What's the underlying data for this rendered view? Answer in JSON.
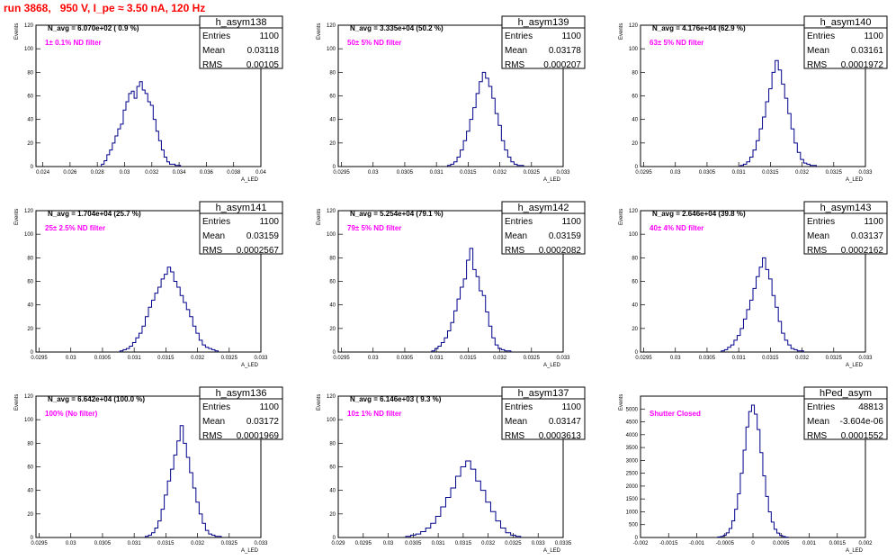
{
  "header": {
    "run_title": "run 3868,   950 V, I_pe ≈ 3.50 nA, 120 Hz"
  },
  "chart_data": [
    {
      "type": "bar",
      "name": "h_asym138",
      "navg": "N_avg = 6.070e+02 ( 0.9 %)",
      "filter": "1± 0.1% ND filter",
      "entries": "1100",
      "mean": "0.03118",
      "rms": "0.00105",
      "xlim": [
        0.0235,
        0.04
      ],
      "xticks": [
        "0.024",
        "0.026",
        "0.028",
        "0.03",
        "0.032",
        "0.034",
        "0.036",
        "0.038",
        "0.04"
      ],
      "xtick_values": [
        0.024,
        0.026,
        0.028,
        0.03,
        0.032,
        0.034,
        0.036,
        0.038,
        0.04
      ],
      "ylim": [
        0,
        120
      ],
      "yticks": [
        0,
        20,
        40,
        60,
        80,
        100,
        120
      ],
      "x": [
        0.0284,
        0.0286,
        0.0288,
        0.029,
        0.0292,
        0.0294,
        0.0296,
        0.0298,
        0.03,
        0.0302,
        0.0304,
        0.0306,
        0.0308,
        0.031,
        0.0312,
        0.0314,
        0.0316,
        0.0318,
        0.032,
        0.0322,
        0.0324,
        0.0326,
        0.0328,
        0.033,
        0.0332,
        0.0334,
        0.0336,
        0.0338,
        0.034
      ],
      "values": [
        2,
        5,
        10,
        14,
        20,
        26,
        32,
        36,
        48,
        55,
        62,
        64,
        58,
        68,
        72,
        65,
        62,
        55,
        52,
        40,
        30,
        22,
        14,
        8,
        4,
        2,
        2,
        1,
        1
      ],
      "ylabel": "Events",
      "xlabel": "A_LED"
    },
    {
      "type": "bar",
      "name": "h_asym139",
      "navg": "N_avg = 3.335e+04 (50.2 %)",
      "filter": "50± 5% ND filter",
      "entries": "1100",
      "mean": "0.03178",
      "rms": "0.000207",
      "xlim": [
        0.02945,
        0.033
      ],
      "xticks": [
        "0.0295",
        "0.03",
        "0.0305",
        "0.031",
        "0.0315",
        "0.032",
        "0.0325",
        "0.033"
      ],
      "xtick_values": [
        0.0295,
        0.03,
        0.0305,
        0.031,
        0.0315,
        0.032,
        0.0325,
        0.033
      ],
      "ylim": [
        0,
        120
      ],
      "yticks": [
        0,
        20,
        40,
        60,
        80,
        100,
        120
      ],
      "x": [
        0.0312,
        0.03125,
        0.0313,
        0.03135,
        0.0314,
        0.03145,
        0.0315,
        0.03155,
        0.0316,
        0.03165,
        0.0317,
        0.03175,
        0.0318,
        0.03185,
        0.0319,
        0.03195,
        0.032,
        0.03205,
        0.0321,
        0.03215,
        0.0322,
        0.03225,
        0.0323,
        0.03235
      ],
      "values": [
        1,
        2,
        4,
        8,
        14,
        22,
        30,
        40,
        50,
        62,
        72,
        80,
        75,
        68,
        58,
        45,
        35,
        22,
        14,
        8,
        4,
        2,
        1,
        1
      ],
      "ylabel": "Events",
      "xlabel": "A_LED"
    },
    {
      "type": "bar",
      "name": "h_asym140",
      "navg": "N_avg = 4.176e+04 (62.9 %)",
      "filter": "63± 5% ND filter",
      "entries": "1100",
      "mean": "0.03161",
      "rms": "0.0001972",
      "xlim": [
        0.02945,
        0.033
      ],
      "xticks": [
        "0.0295",
        "0.03",
        "0.0305",
        "0.031",
        "0.0315",
        "0.032",
        "0.0325",
        "0.033"
      ],
      "xtick_values": [
        0.0295,
        0.03,
        0.0305,
        0.031,
        0.0315,
        0.032,
        0.0325,
        0.033
      ],
      "ylim": [
        0,
        120
      ],
      "yticks": [
        0,
        20,
        40,
        60,
        80,
        100,
        120
      ],
      "x": [
        0.03105,
        0.0311,
        0.03115,
        0.0312,
        0.03125,
        0.0313,
        0.03135,
        0.0314,
        0.03145,
        0.0315,
        0.03155,
        0.0316,
        0.03165,
        0.0317,
        0.03175,
        0.0318,
        0.03185,
        0.0319,
        0.03195,
        0.032,
        0.03205,
        0.0321,
        0.03215,
        0.0322
      ],
      "values": [
        1,
        2,
        4,
        8,
        14,
        22,
        32,
        42,
        55,
        66,
        80,
        90,
        82,
        70,
        58,
        45,
        32,
        20,
        12,
        6,
        3,
        2,
        1,
        1
      ],
      "ylabel": "Events",
      "xlabel": "A_LED"
    },
    {
      "type": "bar",
      "name": "h_asym141",
      "navg": "N_avg = 1.704e+04 (25.7 %)",
      "filter": "25± 2.5% ND filter",
      "entries": "1100",
      "mean": "0.03159",
      "rms": "0.0002567",
      "xlim": [
        0.02945,
        0.033
      ],
      "xticks": [
        "0.0295",
        "0.03",
        "0.0305",
        "0.031",
        "0.0315",
        "0.032",
        "0.0325",
        "0.033"
      ],
      "xtick_values": [
        0.0295,
        0.03,
        0.0305,
        0.031,
        0.0315,
        0.032,
        0.0325,
        0.033
      ],
      "ylim": [
        0,
        120
      ],
      "yticks": [
        0,
        20,
        40,
        60,
        80,
        100,
        120
      ],
      "x": [
        0.0308,
        0.03085,
        0.0309,
        0.03095,
        0.031,
        0.03105,
        0.0311,
        0.03115,
        0.0312,
        0.03125,
        0.0313,
        0.03135,
        0.0314,
        0.03145,
        0.0315,
        0.03155,
        0.0316,
        0.03165,
        0.0317,
        0.03175,
        0.0318,
        0.03185,
        0.0319,
        0.03195,
        0.032,
        0.03205,
        0.0321,
        0.03215,
        0.0322,
        0.03225,
        0.0323
      ],
      "values": [
        1,
        2,
        3,
        5,
        8,
        12,
        16,
        22,
        30,
        38,
        44,
        50,
        55,
        62,
        66,
        72,
        68,
        60,
        55,
        48,
        42,
        36,
        30,
        22,
        16,
        10,
        6,
        4,
        3,
        2,
        1
      ],
      "ylabel": "Events",
      "xlabel": "A_LED"
    },
    {
      "type": "bar",
      "name": "h_asym142",
      "navg": "N_avg = 5.254e+04 (79.1 %)",
      "filter": "79± 5% ND filter",
      "entries": "1100",
      "mean": "0.03159",
      "rms": "0.0002082",
      "xlim": [
        0.02945,
        0.033
      ],
      "xticks": [
        "0.0295",
        "0.03",
        "0.0305",
        "0.031",
        "0.0315",
        "0.032",
        "0.0325",
        "0.033"
      ],
      "xtick_values": [
        0.0295,
        0.03,
        0.0305,
        0.031,
        0.0315,
        0.032,
        0.0325,
        0.033
      ],
      "ylim": [
        0,
        120
      ],
      "yticks": [
        0,
        20,
        40,
        60,
        80,
        100,
        120
      ],
      "x": [
        0.03095,
        0.031,
        0.03105,
        0.0311,
        0.03115,
        0.0312,
        0.03125,
        0.0313,
        0.03135,
        0.0314,
        0.03145,
        0.0315,
        0.03155,
        0.0316,
        0.03165,
        0.0317,
        0.03175,
        0.0318,
        0.03185,
        0.0319,
        0.03195,
        0.032,
        0.03205,
        0.0321,
        0.03215
      ],
      "values": [
        1,
        3,
        5,
        8,
        12,
        18,
        25,
        35,
        45,
        55,
        62,
        78,
        88,
        70,
        64,
        52,
        48,
        34,
        22,
        12,
        6,
        3,
        2,
        1,
        1
      ],
      "ylabel": "Events",
      "xlabel": "A_LED"
    },
    {
      "type": "bar",
      "name": "h_asym143",
      "navg": "N_avg = 2.646e+04 (39.8 %)",
      "filter": "40± 4% ND filter",
      "entries": "1100",
      "mean": "0.03137",
      "rms": "0.0002162",
      "xlim": [
        0.02945,
        0.033
      ],
      "xticks": [
        "0.0295",
        "0.03",
        "0.0305",
        "0.031",
        "0.0315",
        "0.032",
        "0.0325",
        "0.033"
      ],
      "xtick_values": [
        0.0295,
        0.03,
        0.0305,
        0.031,
        0.0315,
        0.032,
        0.0325,
        0.033
      ],
      "ylim": [
        0,
        120
      ],
      "yticks": [
        0,
        20,
        40,
        60,
        80,
        100,
        120
      ],
      "x": [
        0.03075,
        0.0308,
        0.03085,
        0.0309,
        0.03095,
        0.031,
        0.03105,
        0.0311,
        0.03115,
        0.0312,
        0.03125,
        0.0313,
        0.03135,
        0.0314,
        0.03145,
        0.0315,
        0.03155,
        0.0316,
        0.03165,
        0.0317,
        0.03175,
        0.0318,
        0.03185,
        0.0319,
        0.03195,
        0.032
      ],
      "values": [
        1,
        2,
        4,
        6,
        10,
        14,
        20,
        28,
        36,
        44,
        54,
        64,
        72,
        80,
        70,
        62,
        48,
        38,
        26,
        16,
        10,
        6,
        3,
        2,
        1,
        1
      ],
      "ylabel": "Events",
      "xlabel": "A_LED"
    },
    {
      "type": "bar",
      "name": "h_asym136",
      "navg": "N_avg = 6.642e+04 (100.0 %)",
      "filter": "100% (No filter)",
      "entries": "1100",
      "mean": "0.03172",
      "rms": "0.0001969",
      "xlim": [
        0.02945,
        0.033
      ],
      "xticks": [
        "0.0295",
        "0.03",
        "0.0305",
        "0.031",
        "0.0315",
        "0.032",
        "0.0325",
        "0.033"
      ],
      "xtick_values": [
        0.0295,
        0.03,
        0.0305,
        0.031,
        0.0315,
        0.032,
        0.0325,
        0.033
      ],
      "ylim": [
        0,
        120
      ],
      "yticks": [
        0,
        20,
        40,
        60,
        80,
        100,
        120
      ],
      "x": [
        0.0312,
        0.03125,
        0.0313,
        0.03135,
        0.0314,
        0.03145,
        0.0315,
        0.03155,
        0.0316,
        0.03165,
        0.0317,
        0.03175,
        0.0318,
        0.03185,
        0.0319,
        0.03195,
        0.032,
        0.03205,
        0.0321,
        0.03215,
        0.0322,
        0.03225,
        0.0323,
        0.03235
      ],
      "values": [
        1,
        2,
        4,
        8,
        14,
        24,
        36,
        48,
        58,
        70,
        82,
        95,
        80,
        68,
        55,
        42,
        30,
        20,
        12,
        6,
        3,
        2,
        1,
        1
      ],
      "ylabel": "Events",
      "xlabel": "A_LED"
    },
    {
      "type": "bar",
      "name": "h_asym137",
      "navg": "N_avg = 6.146e+03 ( 9.3 %)",
      "filter": "10± 1% ND filter",
      "entries": "1100",
      "mean": "0.03147",
      "rms": "0.0003613",
      "xlim": [
        0.029,
        0.0335
      ],
      "xticks": [
        "0.029",
        "0.0295",
        "0.03",
        "0.0305",
        "0.031",
        "0.0315",
        "0.032",
        "0.0325",
        "0.033",
        "0.0335"
      ],
      "xtick_values": [
        0.029,
        0.0295,
        0.03,
        0.0305,
        0.031,
        0.0315,
        0.032,
        0.0325,
        0.033,
        0.0335
      ],
      "ylim": [
        0,
        120
      ],
      "yticks": [
        0,
        20,
        40,
        60,
        80,
        100,
        120
      ],
      "x": [
        0.0304,
        0.0305,
        0.0306,
        0.0307,
        0.0308,
        0.0309,
        0.031,
        0.0311,
        0.0312,
        0.0313,
        0.0314,
        0.0315,
        0.0316,
        0.0317,
        0.0318,
        0.0319,
        0.032,
        0.0321,
        0.0322,
        0.0323,
        0.0324,
        0.0325,
        0.0326
      ],
      "values": [
        1,
        2,
        3,
        5,
        8,
        12,
        18,
        26,
        34,
        42,
        52,
        60,
        65,
        58,
        48,
        40,
        30,
        22,
        14,
        8,
        4,
        2,
        1
      ],
      "ylabel": "Events",
      "xlabel": "A_LED"
    },
    {
      "type": "bar",
      "name": "hPed_asym",
      "navg": "",
      "filter": "Shutter Closed",
      "entries": "48813",
      "mean": "-3.604e-06",
      "rms": "0.0001552",
      "xlim": [
        -0.002,
        0.002
      ],
      "xticks": [
        "-0.002",
        "-0.0015",
        "-0.001",
        "-0.0005",
        "0",
        "0.0005",
        "0.001",
        "0.0015",
        "0.002"
      ],
      "xtick_values": [
        -0.002,
        -0.0015,
        -0.001,
        -0.0005,
        0,
        0.0005,
        0.001,
        0.0015,
        0.002
      ],
      "ylim": [
        0,
        5500
      ],
      "yticks": [
        0,
        500,
        1000,
        1500,
        2000,
        2500,
        3000,
        3500,
        4000,
        4500,
        5000
      ],
      "x": [
        -0.0006,
        -0.00055,
        -0.0005,
        -0.00045,
        -0.0004,
        -0.00035,
        -0.0003,
        -0.00025,
        -0.0002,
        -0.00015,
        -0.0001,
        -5e-05,
        0,
        5e-05,
        0.0001,
        0.00015,
        0.0002,
        0.00025,
        0.0003,
        0.00035,
        0.0004,
        0.00045,
        0.0005,
        0.00055,
        0.0006
      ],
      "values": [
        20,
        40,
        90,
        180,
        350,
        650,
        1100,
        1700,
        2500,
        3400,
        4300,
        4900,
        5150,
        4800,
        4200,
        3300,
        2400,
        1600,
        1000,
        600,
        320,
        170,
        80,
        40,
        15
      ],
      "ylabel": "Events",
      "xlabel": "A_LED"
    }
  ]
}
